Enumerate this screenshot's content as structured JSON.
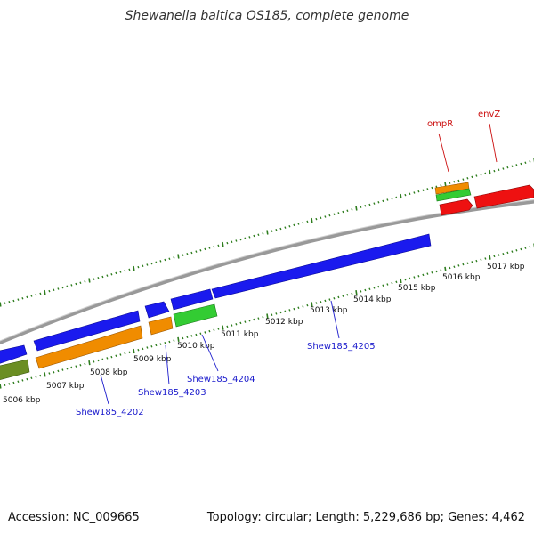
{
  "title": "Shewanella baltica OS185, complete genome",
  "footer": {
    "accession": "Accession: NC_009665",
    "summary": "Topology: circular; Length: 5,229,686 bp; Genes: 4,462"
  },
  "colors": {
    "backbone": "#888888",
    "tick": "#2e7d1e",
    "blue_gene": "#1a1aee",
    "orange_gene": "#f08c00",
    "green_gene": "#33cc33",
    "olive_gene": "#6b8e23",
    "red_gene": "#ee1111",
    "blue_label": "#1a1acc",
    "red_label": "#cc1111"
  },
  "ticks": [
    "5006 kbp",
    "5007 kbp",
    "5008 kbp",
    "5009 kbp",
    "5010 kbp",
    "5011 kbp",
    "5012 kbp",
    "5013 kbp",
    "5014 kbp",
    "5015 kbp",
    "5016 kbp",
    "5017 kbp"
  ],
  "labels": [
    {
      "text": "Shew185_4202",
      "color": "blue"
    },
    {
      "text": "Shew185_4203",
      "color": "blue"
    },
    {
      "text": "Shew185_4204",
      "color": "blue"
    },
    {
      "text": "Shew185_4205",
      "color": "blue"
    },
    {
      "text": "ompR",
      "color": "red"
    },
    {
      "text": "envZ",
      "color": "red"
    }
  ]
}
